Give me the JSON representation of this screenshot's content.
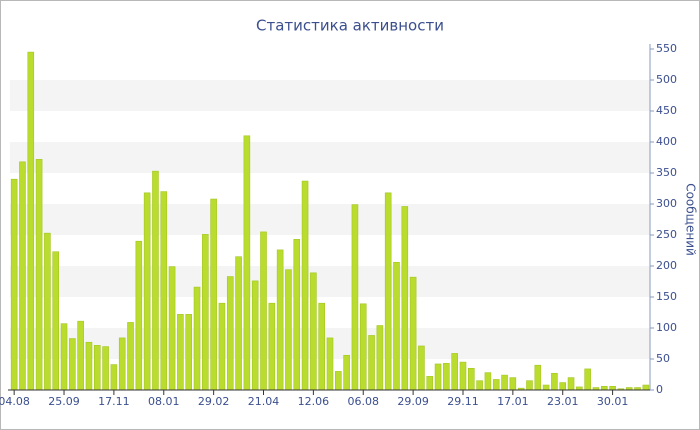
{
  "chart_data": {
    "type": "bar",
    "title": "Статистика активности",
    "y_label": "Сообщений",
    "categories": [
      "04.08",
      null,
      null,
      null,
      null,
      null,
      "25.09",
      null,
      null,
      null,
      null,
      null,
      "17.11",
      null,
      null,
      null,
      null,
      null,
      "08.01",
      null,
      null,
      null,
      null,
      null,
      "29.02",
      null,
      null,
      null,
      null,
      null,
      "21.04",
      null,
      null,
      null,
      null,
      null,
      "12.06",
      null,
      null,
      null,
      null,
      null,
      "06.08",
      null,
      null,
      null,
      null,
      null,
      "29.09",
      null,
      null,
      null,
      null,
      null,
      "29.11",
      null,
      null,
      null,
      null,
      null,
      "17.01",
      null,
      null,
      null,
      null,
      null,
      "23.01",
      null,
      null,
      null,
      null,
      null,
      "30.01",
      null,
      null,
      null,
      null
    ],
    "values": [
      340,
      368,
      545,
      372,
      253,
      223,
      107,
      83,
      111,
      77,
      72,
      70,
      41,
      84,
      109,
      240,
      318,
      353,
      320,
      199,
      122,
      122,
      166,
      251,
      308,
      140,
      183,
      215,
      410,
      176,
      255,
      140,
      226,
      194,
      243,
      337,
      189,
      140,
      84,
      30,
      56,
      299,
      139,
      88,
      104,
      318,
      206,
      296,
      182,
      71,
      22,
      42,
      43,
      59,
      45,
      35,
      15,
      28,
      17,
      24,
      20,
      3,
      15,
      40,
      8,
      27,
      12,
      20,
      5,
      34,
      4,
      6,
      6,
      2,
      4,
      4,
      8
    ],
    "color": "#b9dc2e",
    "ylim": [
      0,
      550
    ],
    "yticks": [
      0,
      50,
      100,
      150,
      200,
      250,
      300,
      350,
      400,
      450,
      500,
      550
    ],
    "grid": "bands",
    "y_axis_side": "right"
  }
}
